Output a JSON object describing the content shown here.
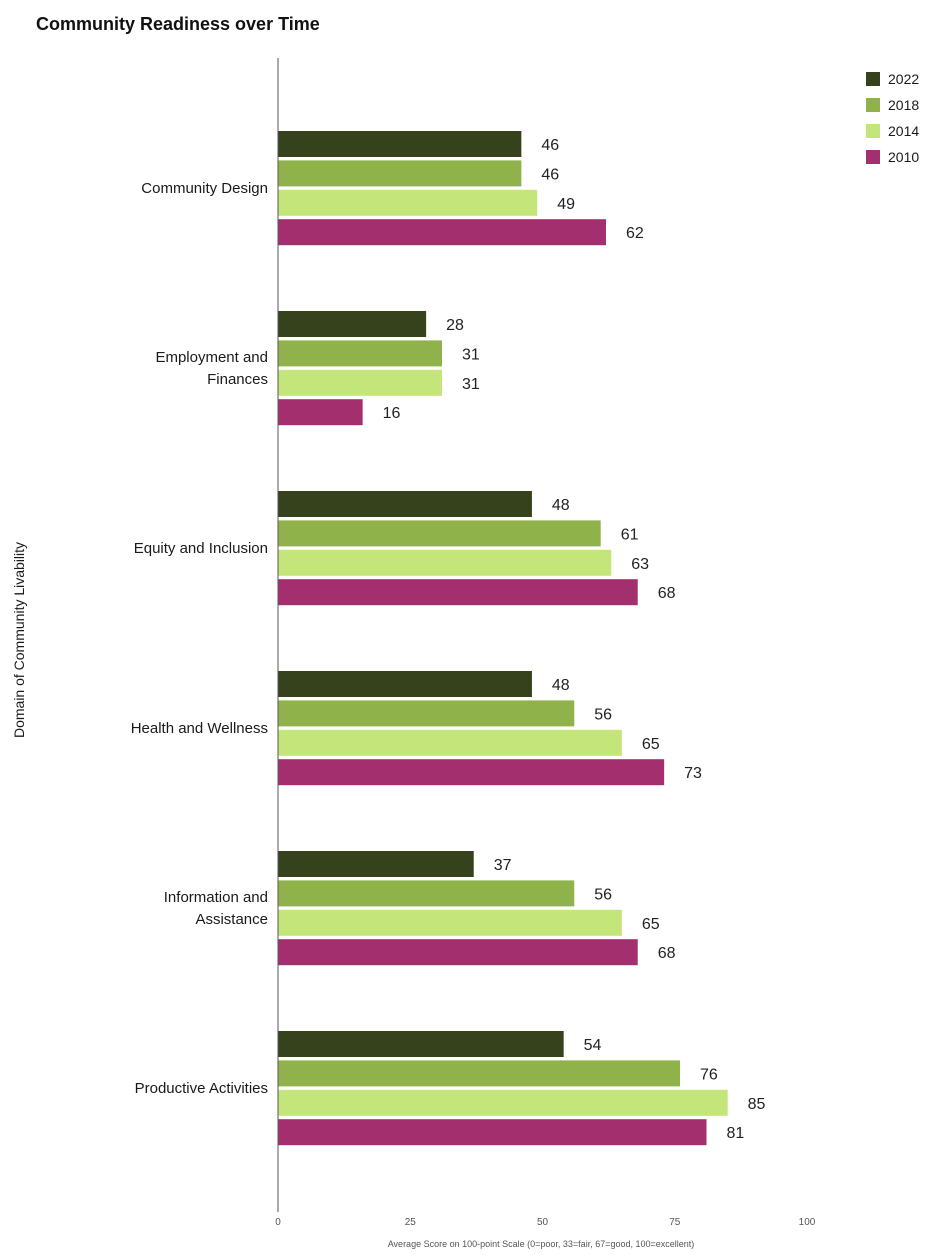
{
  "chart_data": {
    "type": "bar",
    "orientation": "horizontal",
    "title": "Community Readiness over Time",
    "xlabel": "Average Score on 100-point Scale (0=poor, 33=fair, 67=good, 100=excellent)",
    "ylabel": "Domain of Community Livability",
    "xlim": [
      0,
      100
    ],
    "xticks": [
      0,
      25,
      50,
      75,
      100
    ],
    "grid": false,
    "legend_position": "top-right",
    "categories": [
      [
        "Community Design"
      ],
      [
        "Employment and",
        "Finances"
      ],
      [
        "Equity and Inclusion"
      ],
      [
        "Health and Wellness"
      ],
      [
        "Information and",
        "Assistance"
      ],
      [
        "Productive Activities"
      ]
    ],
    "series": [
      {
        "name": "2022",
        "color": "#36421b",
        "values": [
          46,
          28,
          48,
          48,
          37,
          54
        ]
      },
      {
        "name": "2018",
        "color": "#8fb24a",
        "values": [
          46,
          31,
          61,
          56,
          56,
          76
        ]
      },
      {
        "name": "2014",
        "color": "#c3e57a",
        "values": [
          49,
          31,
          63,
          65,
          65,
          85
        ]
      },
      {
        "name": "2010",
        "color": "#a32f6e",
        "values": [
          62,
          16,
          68,
          73,
          68,
          81
        ]
      }
    ]
  }
}
